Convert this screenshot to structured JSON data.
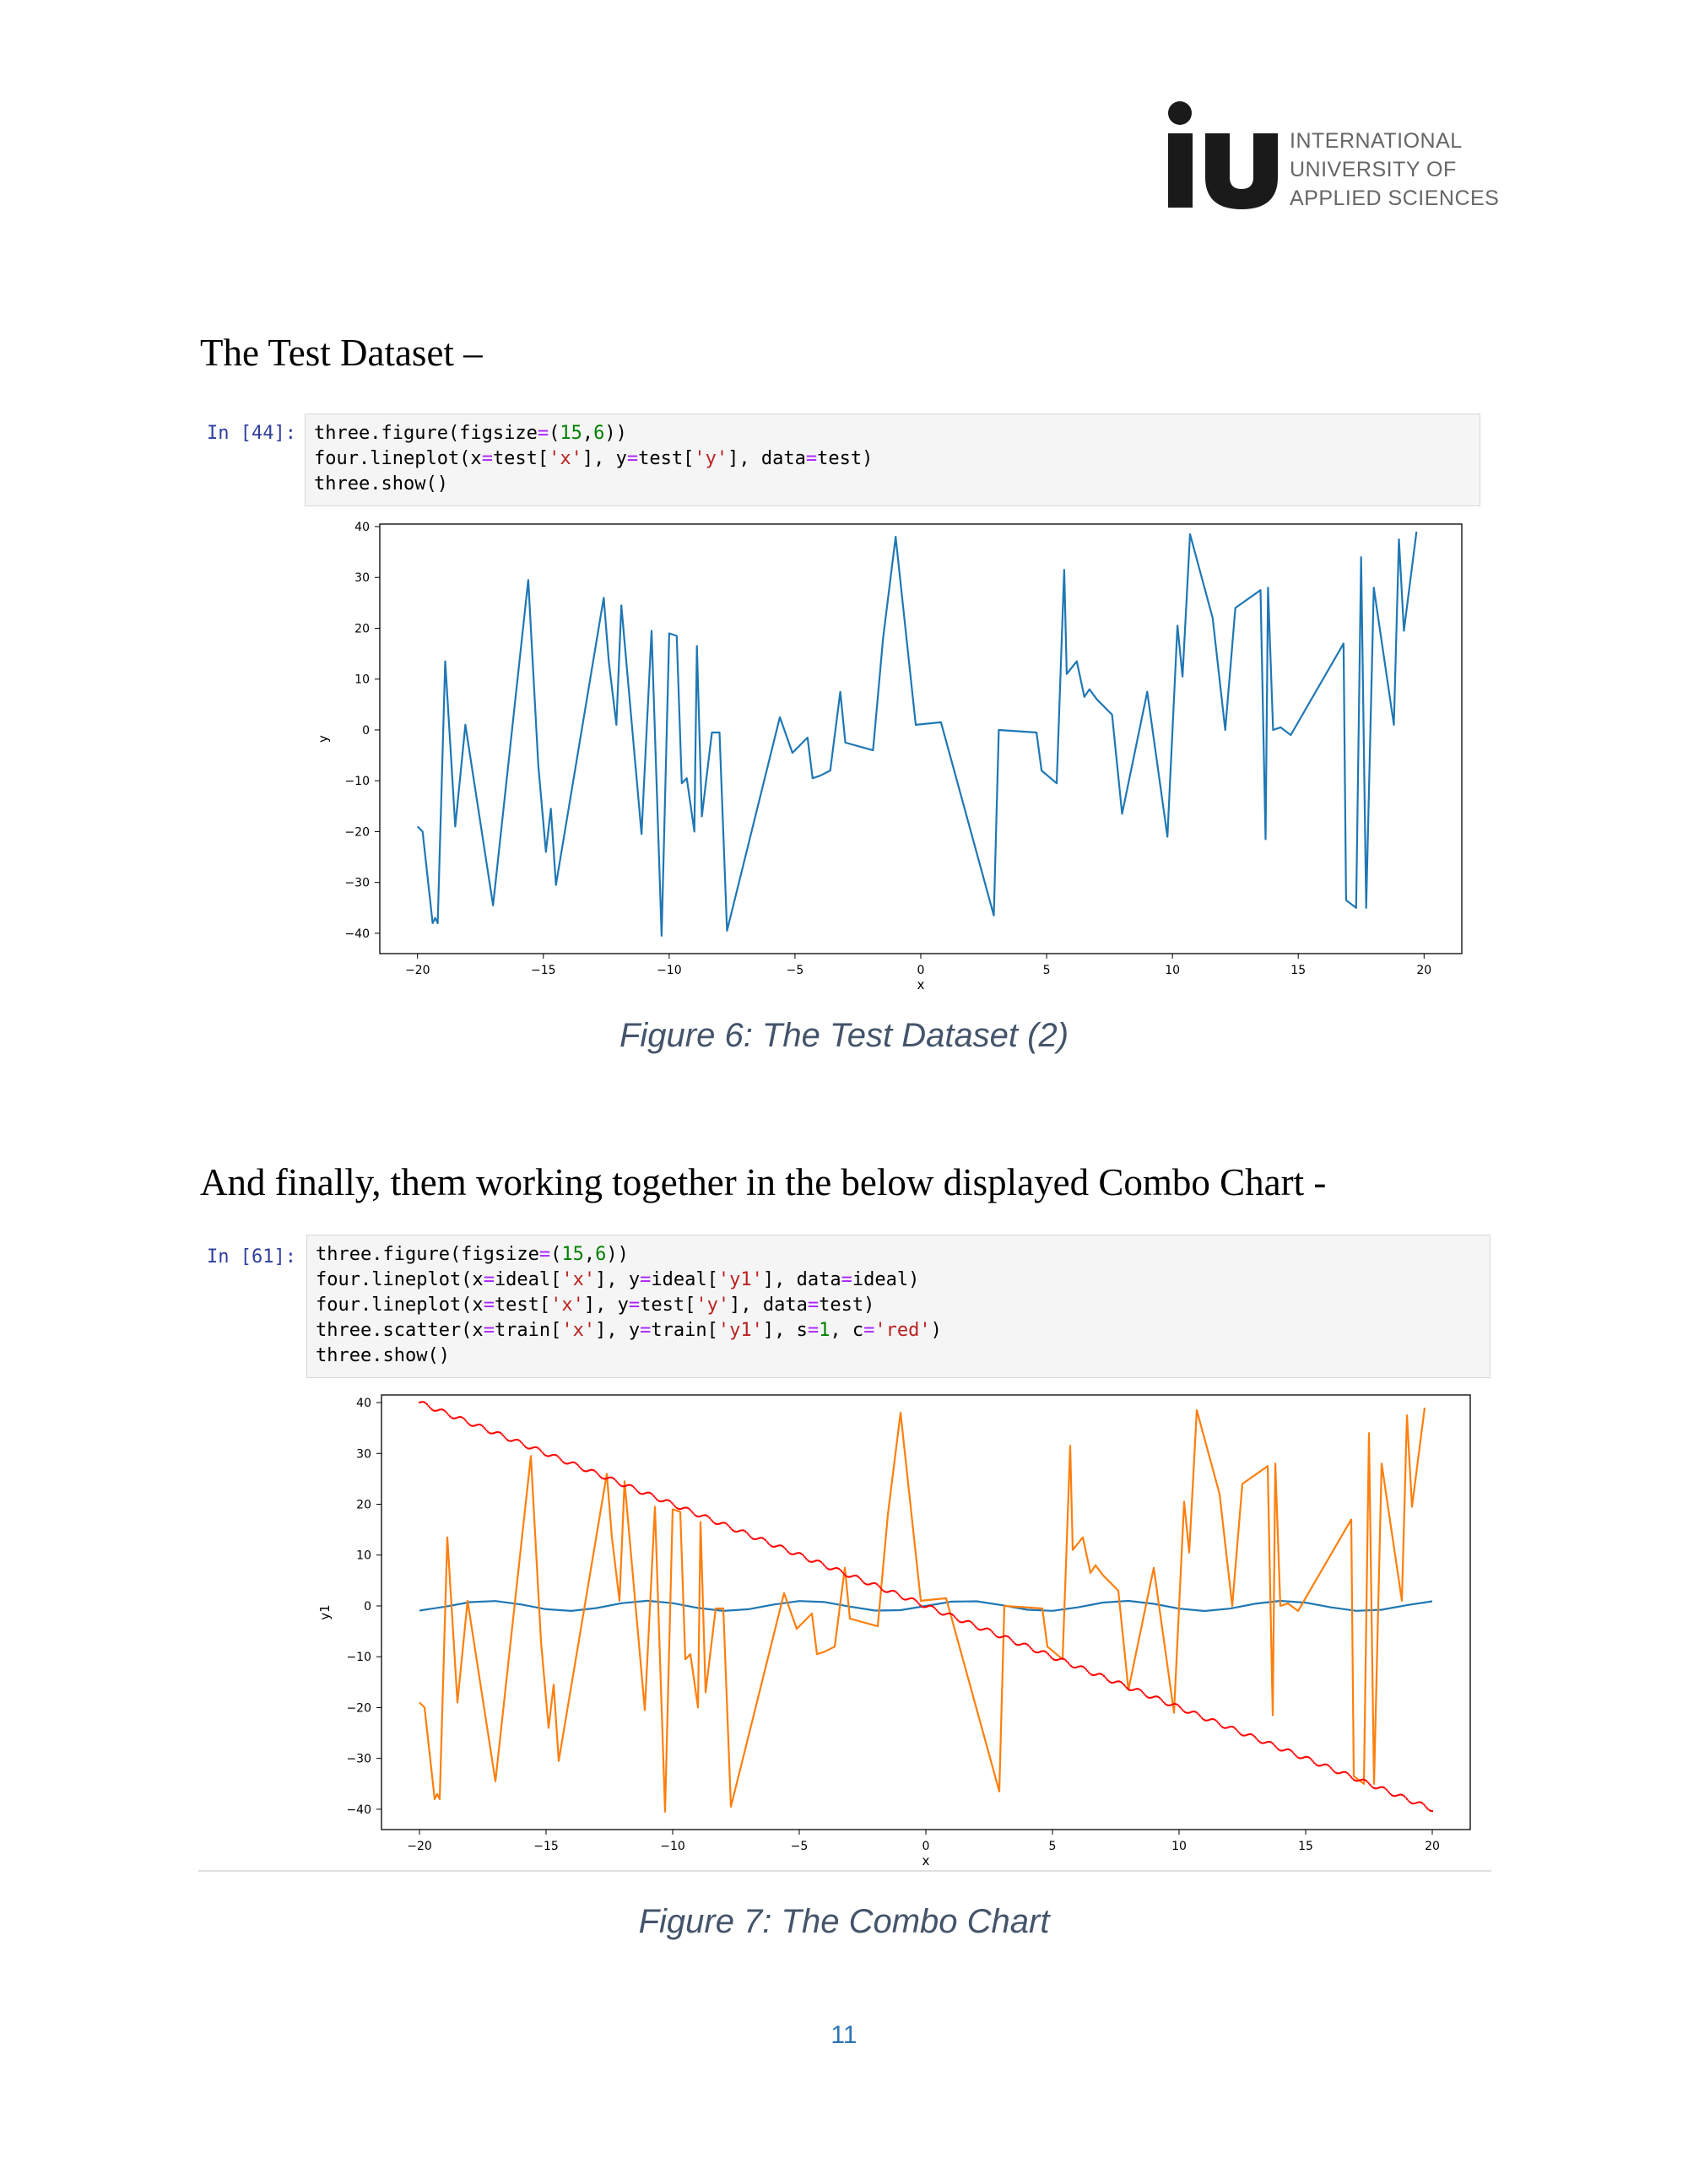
{
  "logo": {
    "mark": "iu",
    "lines": [
      "INTERNATIONAL",
      "UNIVERSITY OF",
      "APPLIED SCIENCES"
    ]
  },
  "section1": {
    "heading": "The Test Dataset –",
    "prompt": "In [44]:",
    "code": [
      [
        [
          "t",
          "three.figure(figsize"
        ],
        [
          "op",
          "="
        ],
        [
          "t",
          "("
        ],
        [
          "num",
          "15"
        ],
        [
          "t",
          ","
        ],
        [
          "num",
          "6"
        ],
        [
          "t",
          "))"
        ]
      ],
      [
        [
          "t",
          "four.lineplot(x"
        ],
        [
          "op",
          "="
        ],
        [
          "t",
          "test["
        ],
        [
          "str",
          "'x'"
        ],
        [
          "t",
          "], y"
        ],
        [
          "op",
          "="
        ],
        [
          "t",
          "test["
        ],
        [
          "str",
          "'y'"
        ],
        [
          "t",
          "], data"
        ],
        [
          "op",
          "="
        ],
        [
          "t",
          "test)"
        ]
      ],
      [
        [
          "t",
          "three.show()"
        ]
      ]
    ],
    "caption": "Figure 6: The Test Dataset (2)"
  },
  "section2": {
    "heading": "And finally, them working together in the below displayed Combo Chart -",
    "prompt": "In [61]:",
    "code": [
      [
        [
          "t",
          "three.figure(figsize"
        ],
        [
          "op",
          "="
        ],
        [
          "t",
          "("
        ],
        [
          "num",
          "15"
        ],
        [
          "t",
          ","
        ],
        [
          "num",
          "6"
        ],
        [
          "t",
          "))"
        ]
      ],
      [
        [
          "t",
          "four.lineplot(x"
        ],
        [
          "op",
          "="
        ],
        [
          "t",
          "ideal["
        ],
        [
          "str",
          "'x'"
        ],
        [
          "t",
          "], y"
        ],
        [
          "op",
          "="
        ],
        [
          "t",
          "ideal["
        ],
        [
          "str",
          "'y1'"
        ],
        [
          "t",
          "], data"
        ],
        [
          "op",
          "="
        ],
        [
          "t",
          "ideal)"
        ]
      ],
      [
        [
          "t",
          "four.lineplot(x"
        ],
        [
          "op",
          "="
        ],
        [
          "t",
          "test["
        ],
        [
          "str",
          "'x'"
        ],
        [
          "t",
          "], y"
        ],
        [
          "op",
          "="
        ],
        [
          "t",
          "test["
        ],
        [
          "str",
          "'y'"
        ],
        [
          "t",
          "], data"
        ],
        [
          "op",
          "="
        ],
        [
          "t",
          "test)"
        ]
      ],
      [
        [
          "t",
          "three.scatter(x"
        ],
        [
          "op",
          "="
        ],
        [
          "t",
          "train["
        ],
        [
          "str",
          "'x'"
        ],
        [
          "t",
          "], y"
        ],
        [
          "op",
          "="
        ],
        [
          "t",
          "train["
        ],
        [
          "str",
          "'y1'"
        ],
        [
          "t",
          "], s"
        ],
        [
          "op",
          "="
        ],
        [
          "num",
          "1"
        ],
        [
          "t",
          ", c"
        ],
        [
          "op",
          "="
        ],
        [
          "str",
          "'red'"
        ],
        [
          "t",
          ")"
        ]
      ],
      [
        [
          "t",
          "three.show()"
        ]
      ]
    ],
    "caption": "Figure 7: The Combo Chart"
  },
  "page_number": "11",
  "colors": {
    "blue": "#1f77b4",
    "orange": "#ff7f0e",
    "red": "#ff0000",
    "caption": "#44546a",
    "page_number": "#2e74b5"
  },
  "chart_data": [
    {
      "type": "line",
      "xlabel": "x",
      "ylabel": "y",
      "xlim": [
        -21.5,
        21.5
      ],
      "ylim": [
        -44,
        40.5
      ],
      "xticks": [
        -20,
        -15,
        -10,
        -5,
        0,
        5,
        10,
        15,
        20
      ],
      "yticks": [
        -40,
        -30,
        -20,
        -10,
        0,
        10,
        20,
        30,
        40
      ],
      "grid": false,
      "series": [
        {
          "color": "#1f77b4",
          "x": [
            -20.0,
            -19.8,
            -19.4,
            -19.3,
            -19.2,
            -18.9,
            -18.5,
            -18.1,
            -17.0,
            -15.6,
            -15.2,
            -14.9,
            -14.7,
            -14.5,
            -12.6,
            -12.4,
            -12.1,
            -11.9,
            -11.1,
            -10.7,
            -10.3,
            -10.0,
            -9.7,
            -9.5,
            -9.3,
            -9.0,
            -8.9,
            -8.7,
            -8.3,
            -8.0,
            -7.7,
            -5.6,
            -5.1,
            -4.5,
            -4.3,
            -4.0,
            -3.6,
            -3.2,
            -3.0,
            -1.9,
            -1.5,
            -1.0,
            -0.2,
            0.8,
            2.9,
            3.1,
            4.6,
            4.8,
            5.4,
            5.7,
            5.8,
            6.2,
            6.5,
            6.7,
            7.0,
            7.6,
            8.0,
            9.0,
            9.8,
            10.2,
            10.4,
            10.7,
            11.6,
            12.1,
            12.5,
            13.5,
            13.7,
            13.8,
            14.0,
            14.3,
            14.7,
            16.8,
            16.9,
            17.3,
            17.5,
            17.7,
            18.0,
            18.8,
            19.0,
            19.2,
            19.7
          ],
          "y": [
            -19.0,
            -20.0,
            -38.0,
            -37.0,
            -38.0,
            13.5,
            -19.0,
            1.0,
            -34.5,
            29.5,
            -7.0,
            -24.0,
            -15.5,
            -30.5,
            26.0,
            13.5,
            1.0,
            24.5,
            -20.5,
            19.5,
            -40.5,
            19.0,
            18.5,
            -10.5,
            -9.5,
            -20.0,
            16.5,
            -17.0,
            -0.5,
            -0.5,
            -39.5,
            2.5,
            -4.5,
            -1.5,
            -9.5,
            -9.0,
            -8.0,
            7.5,
            -2.5,
            -4.0,
            18.0,
            38.0,
            1.0,
            1.5,
            -36.5,
            0.0,
            -0.5,
            -8.0,
            -10.5,
            31.5,
            11.0,
            13.5,
            6.5,
            8.0,
            6.0,
            3.0,
            -16.5,
            7.5,
            -21.0,
            20.5,
            10.5,
            38.5,
            22.0,
            0.0,
            24.0,
            27.5,
            -21.5,
            28.0,
            0.0,
            0.5,
            -1.0,
            17.0,
            -33.5,
            -35.0,
            34.0,
            -35.0,
            28.0,
            1.0,
            37.5,
            19.5,
            39.0
          ]
        }
      ]
    },
    {
      "type": "line",
      "xlabel": "x",
      "ylabel": "y1",
      "xlim": [
        -21.5,
        21.5
      ],
      "ylim": [
        -44,
        41.5
      ],
      "xticks": [
        -20,
        -15,
        -10,
        -5,
        0,
        5,
        10,
        15,
        20
      ],
      "yticks": [
        -40,
        -30,
        -20,
        -10,
        0,
        10,
        20,
        30,
        40
      ],
      "grid": false,
      "series": [
        {
          "color": "#1f77b4",
          "x": [
            -20.0,
            -19.0,
            -18.0,
            -17.0,
            -16.0,
            -15.0,
            -14.0,
            -13.0,
            -12.0,
            -11.0,
            -10.0,
            -9.0,
            -8.0,
            -7.0,
            -6.0,
            -5.0,
            -4.0,
            -3.0,
            -2.0,
            -1.0,
            0.0,
            1.0,
            2.0,
            3.0,
            4.0,
            5.0,
            6.0,
            7.0,
            8.0,
            9.0,
            10.0,
            11.0,
            12.0,
            13.0,
            14.0,
            15.0,
            16.0,
            17.0,
            18.0,
            19.0,
            20.0
          ],
          "y": [
            -0.91,
            -0.15,
            0.75,
            0.96,
            0.29,
            -0.65,
            -0.99,
            -0.42,
            0.54,
            1.0,
            0.54,
            -0.41,
            -0.99,
            -0.66,
            0.28,
            0.96,
            0.76,
            -0.14,
            -0.91,
            -0.84,
            0.0,
            0.84,
            0.91,
            0.14,
            -0.76,
            -0.96,
            -0.28,
            0.66,
            0.99,
            0.41,
            -0.54,
            -1.0,
            -0.54,
            0.42,
            0.99,
            0.65,
            -0.29,
            -0.96,
            -0.75,
            0.15,
            0.91
          ]
        },
        {
          "color": "#ff7f0e",
          "x": [
            -20.0,
            -19.8,
            -19.4,
            -19.3,
            -19.2,
            -18.9,
            -18.5,
            -18.1,
            -17.0,
            -15.6,
            -15.2,
            -14.9,
            -14.7,
            -14.5,
            -12.6,
            -12.4,
            -12.1,
            -11.9,
            -11.1,
            -10.7,
            -10.3,
            -10.0,
            -9.7,
            -9.5,
            -9.3,
            -9.0,
            -8.9,
            -8.7,
            -8.3,
            -8.0,
            -7.7,
            -5.6,
            -5.1,
            -4.5,
            -4.3,
            -4.0,
            -3.6,
            -3.2,
            -3.0,
            -1.9,
            -1.5,
            -1.0,
            -0.2,
            0.8,
            2.9,
            3.1,
            4.6,
            4.8,
            5.4,
            5.7,
            5.8,
            6.2,
            6.5,
            6.7,
            7.0,
            7.6,
            8.0,
            9.0,
            9.8,
            10.2,
            10.4,
            10.7,
            11.6,
            12.1,
            12.5,
            13.5,
            13.7,
            13.8,
            14.0,
            14.3,
            14.7,
            16.8,
            16.9,
            17.3,
            17.5,
            17.7,
            18.0,
            18.8,
            19.0,
            19.2,
            19.7
          ],
          "y": [
            -19.0,
            -20.0,
            -38.0,
            -37.0,
            -38.0,
            13.5,
            -19.0,
            1.0,
            -34.5,
            29.5,
            -7.0,
            -24.0,
            -15.5,
            -30.5,
            26.0,
            13.5,
            1.0,
            24.5,
            -20.5,
            19.5,
            -40.5,
            19.0,
            18.5,
            -10.5,
            -9.5,
            -20.0,
            16.5,
            -17.0,
            -0.5,
            -0.5,
            -39.5,
            2.5,
            -4.5,
            -1.5,
            -9.5,
            -9.0,
            -8.0,
            7.5,
            -2.5,
            -4.0,
            18.0,
            38.0,
            1.0,
            1.5,
            -36.5,
            0.0,
            -0.5,
            -8.0,
            -10.5,
            31.5,
            11.0,
            13.5,
            6.5,
            8.0,
            6.0,
            3.0,
            -16.5,
            7.5,
            -21.0,
            20.5,
            10.5,
            38.5,
            22.0,
            0.0,
            24.0,
            27.5,
            -21.5,
            28.0,
            0.0,
            0.5,
            -1.0,
            17.0,
            -33.5,
            -35.0,
            34.0,
            -35.0,
            28.0,
            1.0,
            37.5,
            19.5,
            39.0
          ]
        },
        {
          "type": "scatter",
          "color": "#ff0000",
          "x_range": [
            -20,
            20
          ],
          "y_at_x_min": 40,
          "y_at_x_max": -40
        }
      ]
    }
  ]
}
